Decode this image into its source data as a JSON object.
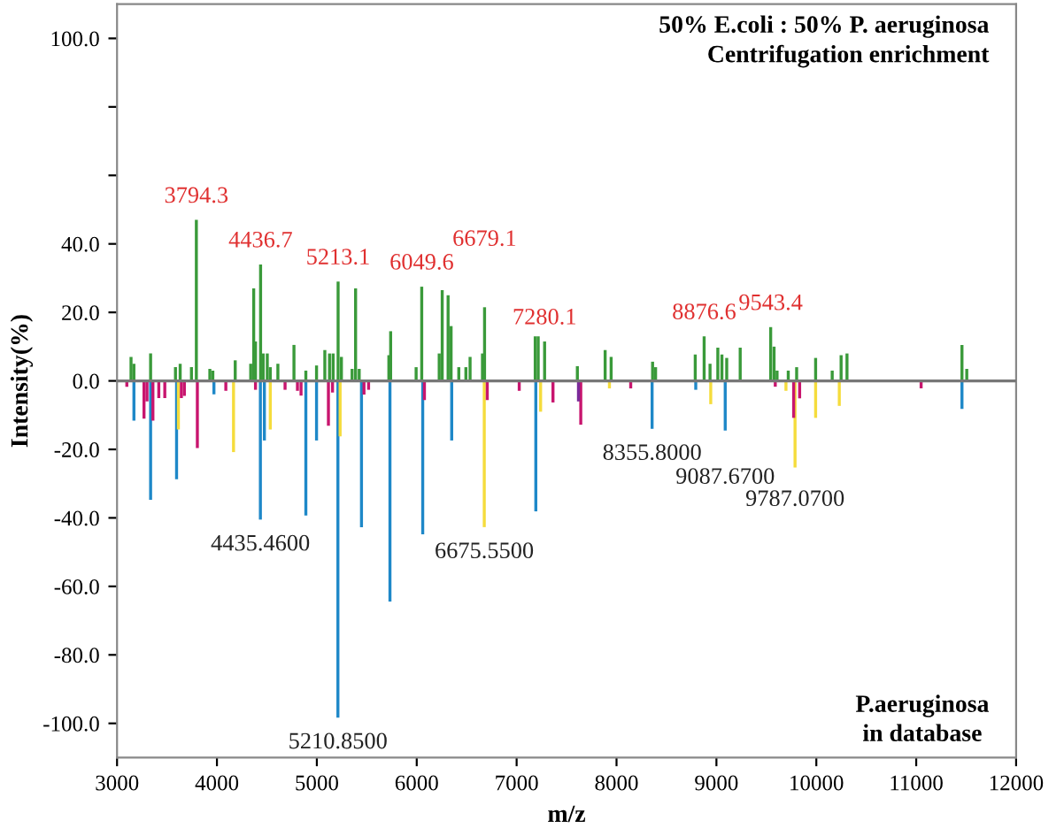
{
  "chart_data": {
    "type": "bar",
    "xlabel": "m/z",
    "ylabel": "Intensity(%)",
    "xlim": [
      3000,
      12000
    ],
    "ylim": [
      -110,
      110
    ],
    "xticks": [
      3000,
      4000,
      5000,
      6000,
      7000,
      8000,
      9000,
      10000,
      11000,
      12000
    ],
    "yticks": [
      {
        "value": -100,
        "label": "-100.0"
      },
      {
        "value": -80,
        "label": "-80.0"
      },
      {
        "value": -60,
        "label": "-60.0"
      },
      {
        "value": -40,
        "label": "-40.0"
      },
      {
        "value": -20,
        "label": "-20.0"
      },
      {
        "value": 0,
        "label": "0.0"
      },
      {
        "value": 20,
        "label": "20.0"
      },
      {
        "value": 40,
        "label": "40.0"
      },
      {
        "value": 60,
        "label": null
      },
      {
        "value": 80,
        "label": null
      },
      {
        "value": 100,
        "label": "100.0"
      }
    ],
    "grid": false,
    "legend": false,
    "ref_lines": [
      {
        "axis": "y",
        "value": 0,
        "color": "#777777"
      }
    ],
    "series": [
      {
        "color": "#3a9a3a",
        "x": [
          3140,
          3169,
          3336,
          3585,
          3632,
          3745,
          3794,
          3929,
          3959,
          4183,
          4338,
          4368,
          4386,
          4437,
          4463,
          4504,
          4534,
          4610,
          4771,
          4890,
          4997,
          5080,
          5127,
          5163,
          5213,
          5246,
          5353,
          5388,
          5424,
          5721,
          5739,
          5994,
          6050,
          6225,
          6255,
          6314,
          6344,
          6421,
          6492,
          6534,
          6658,
          6679,
          7186,
          7216,
          7280,
          7608,
          7886,
          7946,
          8361,
          8391,
          8788,
          8877,
          8936,
          9014,
          9055,
          9103,
          9238,
          9543,
          9577,
          9607,
          9719,
          9803,
          9993,
          10159,
          10248,
          10307,
          11458,
          11506
        ],
        "values": [
          7,
          5,
          8,
          4,
          5,
          4,
          47,
          3.5,
          3,
          6,
          5,
          27,
          11.5,
          34,
          8,
          8,
          4,
          5,
          10.5,
          3,
          4.5,
          9,
          8,
          8,
          29,
          7,
          3.5,
          27,
          3.5,
          7.5,
          14.5,
          4,
          27.5,
          8,
          26.5,
          25,
          16,
          4,
          4,
          7,
          8,
          21.5,
          13,
          13,
          11.5,
          4.3,
          9,
          7,
          5.6,
          4,
          7.7,
          13,
          5,
          9.7,
          7.7,
          6.7,
          9.7,
          15.7,
          10,
          3,
          3,
          4,
          6.7,
          3,
          7.5,
          8,
          10.5,
          3.5
        ]
      },
      {
        "color": "#1e88c8",
        "x": [
          3169,
          3336,
          3596,
          3970,
          4435,
          4475,
          4890,
          4997,
          5211,
          5447,
          5732,
          6060,
          6350,
          7192,
          8356,
          8793,
          9088,
          11458
        ],
        "values": [
          -11.6,
          -34.7,
          -28.7,
          -3.9,
          -40.5,
          -17.4,
          -39.3,
          -17.4,
          -98.3,
          -42.7,
          -64.4,
          -44.8,
          -17.4,
          -38.1,
          -14,
          -2.6,
          -14.5,
          -8.2
        ]
      },
      {
        "color": "#f5dc3c",
        "x": [
          3614,
          4166,
          4534,
          5233,
          6676,
          7240,
          7929,
          8943,
          9696,
          9787,
          9993,
          10230
        ],
        "values": [
          -14.2,
          -20.8,
          -14.2,
          -16.2,
          -42.7,
          -9,
          -2.2,
          -6.8,
          -2.9,
          -25.3,
          -10.8,
          -7.3
        ]
      },
      {
        "color": "#c8156e",
        "x": [
          3098,
          3270,
          3300,
          3359,
          3418,
          3478,
          3644,
          3674,
          3804,
          4089,
          4386,
          4682,
          4806,
          4842,
          5116,
          5157,
          5472,
          5518,
          6077,
          6706,
          7026,
          7364,
          7642,
          8142,
          9589,
          9773,
          9833,
          11049
        ],
        "values": [
          -1.7,
          -11,
          -6,
          -11.6,
          -5,
          -5,
          -5,
          -4.4,
          -19.6,
          -2.9,
          -2.6,
          -2.6,
          -2.9,
          -4.3,
          -13.1,
          -3.4,
          -4,
          -2.6,
          -5.6,
          -5.6,
          -2.9,
          -6.3,
          -12.8,
          -2.2,
          -1.7,
          -10.8,
          -5.1,
          -2.2
        ]
      },
      {
        "color": "#7a2a9a",
        "x": [
          7619
        ],
        "values": [
          -6
        ]
      }
    ],
    "annotations": [
      {
        "text": "3794.3",
        "x": 3794,
        "y": 47
      },
      {
        "text": "4436.7",
        "x": 4437,
        "y": 34
      },
      {
        "text": "5213.1",
        "x": 5213,
        "y": 29
      },
      {
        "text": "6049.6",
        "x": 6050,
        "y": 27.5
      },
      {
        "text": "6679.1",
        "x": 6679,
        "y": 21.5
      },
      {
        "text": "7280.1",
        "x": 7280,
        "y": 11.5
      },
      {
        "text": "8876.6",
        "x": 8877,
        "y": 13
      },
      {
        "text": "9543.4",
        "x": 9543,
        "y": 15.7
      },
      {
        "text": "4435.4600",
        "x": 4435,
        "y": -40.5
      },
      {
        "text": "5210.8500",
        "x": 5211,
        "y": -98.3
      },
      {
        "text": "6675.5500",
        "x": 6676,
        "y": -42.7
      },
      {
        "text": "8355.8000",
        "x": 8356,
        "y": -14
      },
      {
        "text": "9087.6700",
        "x": 9088,
        "y": -14.5
      },
      {
        "text": "9787.0700",
        "x": 9787,
        "y": -25.3
      },
      "50% E.coli : 50% P. aeruginosa\nCentrifugation enrichment",
      "P.aeruginosa\nin database"
    ]
  }
}
